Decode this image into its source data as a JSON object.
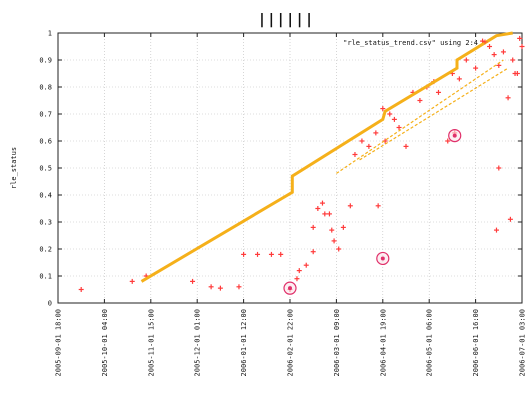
{
  "chart_data": {
    "type": "scatter",
    "title": "||||||",
    "xlabel": "",
    "ylabel": "rle_status",
    "ylim": [
      0,
      1
    ],
    "yticks": [
      "0",
      "0.1",
      "0.2",
      "0.3",
      "0.4",
      "0.5",
      "0.6",
      "0.7",
      "0.8",
      "0.9",
      "1"
    ],
    "xticks": [
      "2005-09-01 18:00",
      "2005-10-01 04:00",
      "2005-11-01 15:00",
      "2005-12-01 01:00",
      "2006-01-01 12:00",
      "2006-02-01 22:00",
      "2006-03-01 09:00",
      "2006-04-01 19:00",
      "2006-05-01 06:00",
      "2006-06-01 16:00",
      "2006-07-01 03:00"
    ],
    "legend": {
      "label": "\"rle_status_trend.csv\" using 2:4",
      "position": "top-right"
    },
    "grid": true,
    "colors": {
      "points": "#ff3b3b",
      "trend": "#f5b01a",
      "highlight": "#e0306a"
    },
    "series": [
      {
        "name": "\"rle_status_trend.csv\" using 2:4",
        "style": "points",
        "points": [
          [
            0.5,
            0.05
          ],
          [
            1.6,
            0.08
          ],
          [
            1.9,
            0.1
          ],
          [
            2.9,
            0.08
          ],
          [
            3.3,
            0.06
          ],
          [
            3.5,
            0.055
          ],
          [
            3.9,
            0.06
          ],
          [
            4.0,
            0.18
          ],
          [
            4.3,
            0.18
          ],
          [
            4.6,
            0.18
          ],
          [
            4.8,
            0.18
          ],
          [
            5.0,
            0.05
          ],
          [
            5.15,
            0.09
          ],
          [
            5.2,
            0.12
          ],
          [
            5.35,
            0.14
          ],
          [
            5.5,
            0.19
          ],
          [
            5.5,
            0.28
          ],
          [
            5.6,
            0.35
          ],
          [
            5.7,
            0.37
          ],
          [
            5.75,
            0.33
          ],
          [
            5.85,
            0.33
          ],
          [
            5.9,
            0.27
          ],
          [
            5.95,
            0.23
          ],
          [
            6.05,
            0.2
          ],
          [
            6.15,
            0.28
          ],
          [
            6.3,
            0.36
          ],
          [
            6.4,
            0.55
          ],
          [
            6.55,
            0.6
          ],
          [
            6.7,
            0.58
          ],
          [
            6.85,
            0.63
          ],
          [
            6.9,
            0.36
          ],
          [
            7.0,
            0.72
          ],
          [
            7.05,
            0.6
          ],
          [
            7.15,
            0.7
          ],
          [
            7.25,
            0.68
          ],
          [
            7.35,
            0.65
          ],
          [
            7.5,
            0.58
          ],
          [
            7.65,
            0.78
          ],
          [
            7.8,
            0.75
          ],
          [
            7.95,
            0.8
          ],
          [
            8.1,
            0.82
          ],
          [
            8.2,
            0.78
          ],
          [
            8.4,
            0.6
          ],
          [
            8.5,
            0.85
          ],
          [
            8.65,
            0.83
          ],
          [
            8.8,
            0.9
          ],
          [
            9.0,
            0.87
          ],
          [
            9.15,
            0.97
          ],
          [
            9.3,
            0.95
          ],
          [
            9.4,
            0.92
          ],
          [
            9.5,
            0.88
          ],
          [
            9.6,
            0.93
          ],
          [
            9.7,
            0.76
          ],
          [
            9.8,
            0.9
          ],
          [
            9.85,
            0.85
          ],
          [
            9.95,
            0.98
          ],
          [
            10.0,
            0.95
          ],
          [
            9.45,
            0.27
          ],
          [
            9.5,
            0.5
          ],
          [
            9.75,
            0.31
          ],
          [
            9.9,
            0.85
          ],
          [
            8.55,
            0.63
          ]
        ]
      },
      {
        "name": "",
        "style": "line",
        "points": [
          [
            1.8,
            0.08
          ],
          [
            5.05,
            0.41
          ],
          [
            5.05,
            0.47
          ],
          [
            7.0,
            0.68
          ],
          [
            7.05,
            0.71
          ],
          [
            8.6,
            0.87
          ],
          [
            8.6,
            0.9
          ],
          [
            9.45,
            0.99
          ],
          [
            9.8,
            1.0
          ]
        ]
      },
      {
        "name": "",
        "style": "dashed",
        "points": [
          [
            6.0,
            0.48
          ],
          [
            9.6,
            0.9
          ]
        ]
      },
      {
        "name": "",
        "style": "dashed",
        "points": [
          [
            6.5,
            0.53
          ],
          [
            9.7,
            0.87
          ]
        ]
      }
    ],
    "highlighted_points": [
      [
        5.0,
        0.055
      ],
      [
        7.0,
        0.165
      ],
      [
        8.55,
        0.62
      ]
    ]
  }
}
